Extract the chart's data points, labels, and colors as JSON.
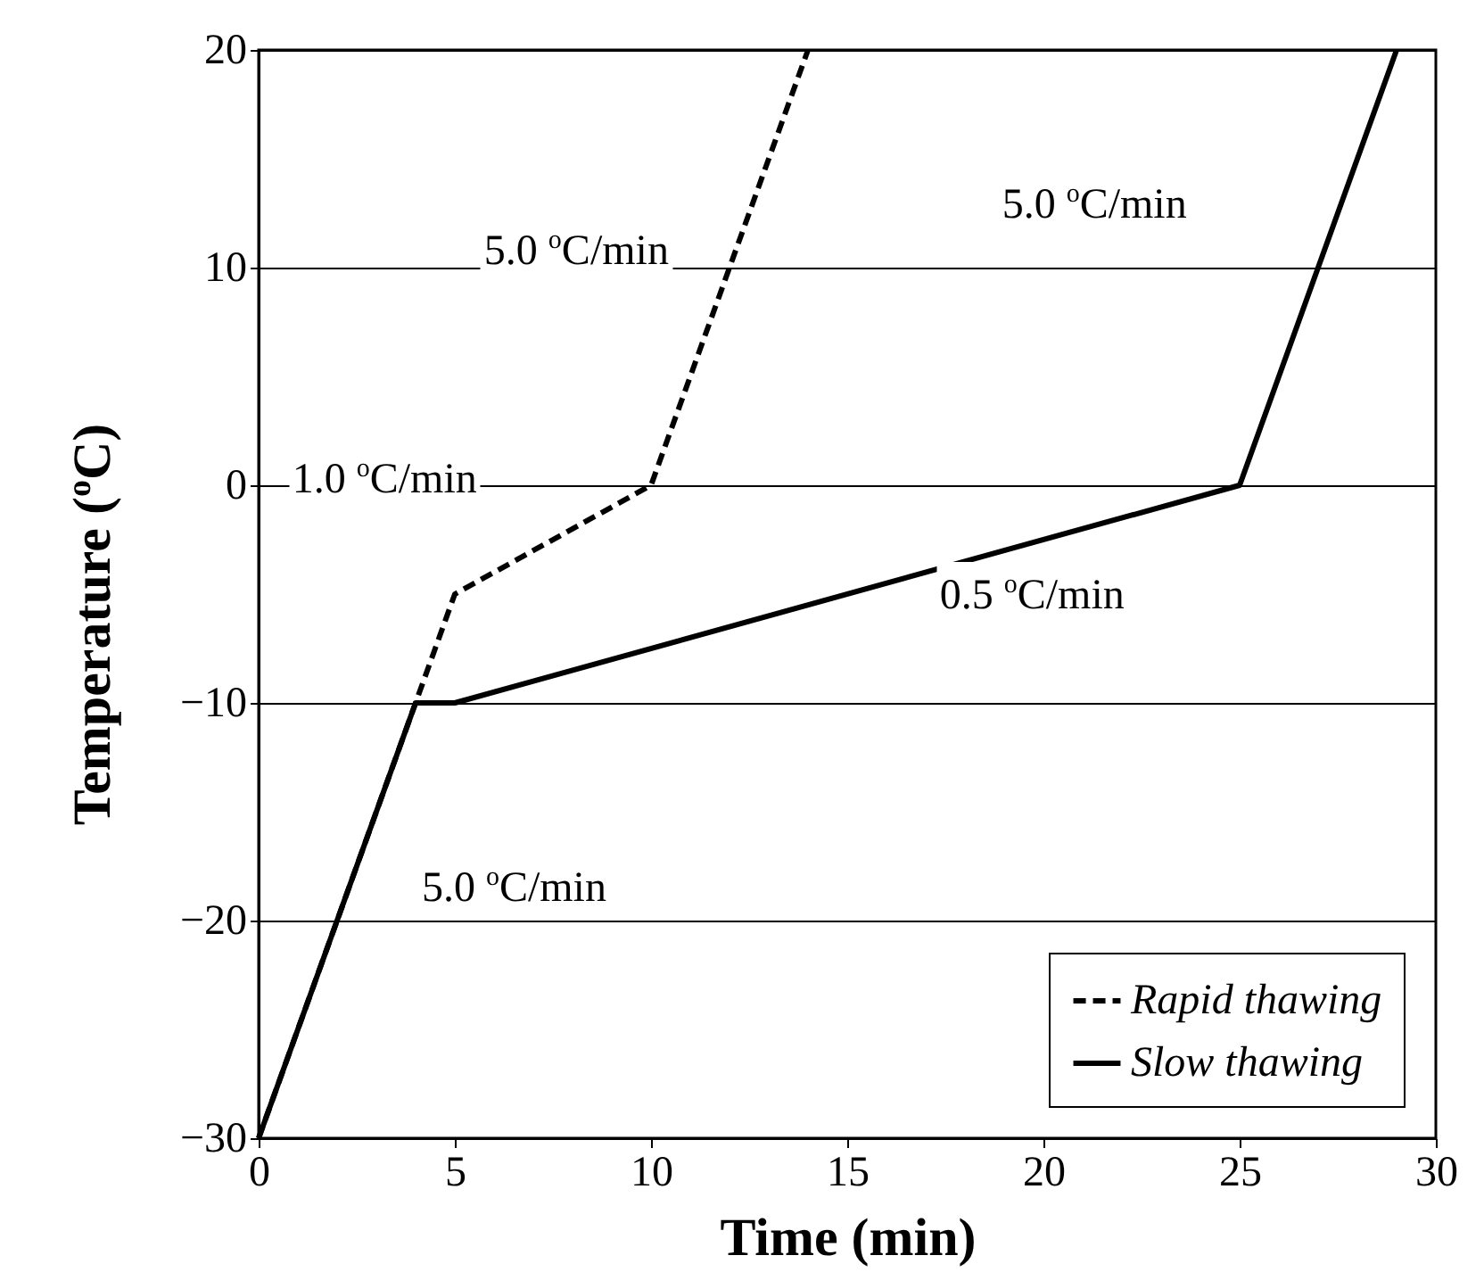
{
  "chart_data": {
    "type": "line",
    "xlabel": "Time (min)",
    "ylabel": "Temperature ($^{o}$C)",
    "xlim": [
      0,
      30
    ],
    "ylim": [
      -30,
      20
    ],
    "xticks": [
      0,
      5,
      10,
      15,
      20,
      25,
      30
    ],
    "yticks": [
      -30,
      -20,
      -10,
      0,
      10,
      20
    ],
    "grid": "y",
    "legend": "bottom right",
    "marker": "none",
    "series": [
      {
        "name": "Rapid thawing",
        "color": "#000000",
        "line_style": "dashed",
        "x": [
          0,
          4,
          5,
          10,
          14
        ],
        "values": [
          -30,
          -10,
          -5,
          0,
          20
        ]
      },
      {
        "name": "Slow thawing",
        "color": "#000000",
        "line_style": "solid",
        "x": [
          0,
          4,
          5,
          25,
          29
        ],
        "values": [
          -30,
          -10,
          -10,
          0,
          20
        ]
      }
    ],
    "annotations": [
      "5.0 $^{o}$C/min",
      "5.0 $^{o}$C/min",
      "1.0 $^{o}$C/min",
      "0.5 $^{o}$C/min",
      "5.0 $^{o}$C/min"
    ]
  }
}
